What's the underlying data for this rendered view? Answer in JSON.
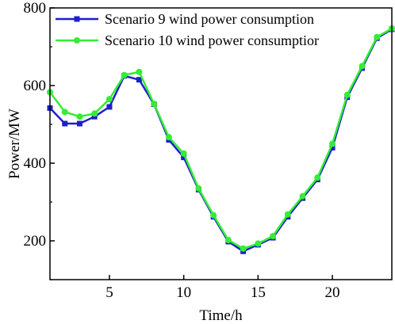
{
  "chart_data": {
    "type": "line",
    "xlabel": "Time/h",
    "ylabel": "Power/MW",
    "xlim": [
      1,
      24
    ],
    "ylim": [
      100,
      800
    ],
    "x_ticks": [
      5,
      10,
      15,
      20
    ],
    "y_ticks": [
      200,
      400,
      600,
      800
    ],
    "grid": false,
    "legend_position": "top-left",
    "x": [
      1,
      2,
      3,
      4,
      5,
      6,
      7,
      8,
      9,
      10,
      11,
      12,
      13,
      14,
      15,
      16,
      17,
      18,
      19,
      20,
      21,
      22,
      23,
      24
    ],
    "series": [
      {
        "name": "Scenario 9 wind power consumption",
        "color": "#1f1fcc",
        "marker": "square",
        "values": [
          542,
          502,
          502,
          520,
          545,
          625,
          615,
          552,
          460,
          415,
          332,
          262,
          198,
          173,
          190,
          208,
          262,
          310,
          358,
          440,
          570,
          645,
          722,
          745
        ]
      },
      {
        "name": "Scenario 10 wind power consumptior",
        "color": "#33ee33",
        "marker": "circle",
        "values": [
          583,
          532,
          520,
          528,
          565,
          627,
          635,
          553,
          467,
          425,
          335,
          266,
          202,
          180,
          193,
          212,
          268,
          315,
          363,
          450,
          576,
          650,
          725,
          747
        ]
      }
    ]
  }
}
